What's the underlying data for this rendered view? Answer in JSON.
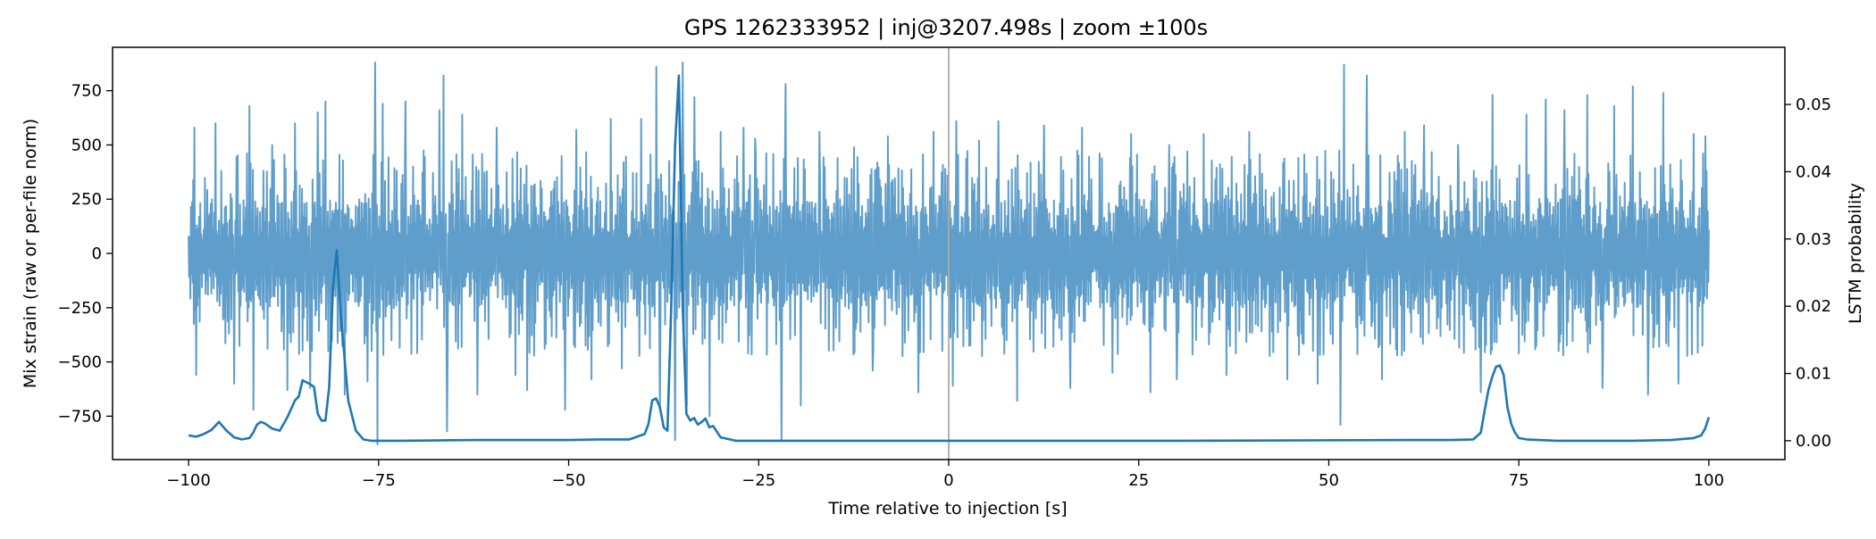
{
  "chart_data": {
    "type": "line",
    "title": "GPS 1262333952 | inj@3207.498s | zoom ±100s",
    "xlabel": "Time relative to injection [s]",
    "ylabel_left": "Mix strain (raw or per-file norm)",
    "ylabel_right": "LSTM probability",
    "xlim": [
      -110,
      110
    ],
    "ylim_left": [
      -950,
      950
    ],
    "ylim_right": [
      -0.0028,
      0.0585
    ],
    "xticks": [
      -100,
      -75,
      -50,
      -25,
      0,
      25,
      50,
      75,
      100
    ],
    "xtick_labels": [
      "−100",
      "−75",
      "−50",
      "−25",
      "0",
      "25",
      "50",
      "75",
      "100"
    ],
    "yticks_left": [
      -750,
      -500,
      -250,
      0,
      250,
      500,
      750
    ],
    "ytick_labels_left": [
      "−750",
      "−500",
      "−250",
      "0",
      "250",
      "500",
      "750"
    ],
    "yticks_right": [
      0.0,
      0.01,
      0.02,
      0.03,
      0.04,
      0.05
    ],
    "ytick_labels_right": [
      "0.00",
      "0.01",
      "0.02",
      "0.03",
      "0.04",
      "0.05"
    ],
    "grid": false,
    "vline_x": 0,
    "colors": {
      "strain": "#5f9ecb",
      "probability": "#1f77b4",
      "vline": "#aaaaaa",
      "axes": "#000000"
    },
    "strain_x_range": [
      -100,
      100
    ],
    "strain_typical_amplitude": 250,
    "strain_peaks": [
      {
        "x": -99.3,
        "y": 580
      },
      {
        "x": -99.0,
        "y": -560
      },
      {
        "x": -96.5,
        "y": 600
      },
      {
        "x": -94.0,
        "y": -600
      },
      {
        "x": -92.0,
        "y": 680
      },
      {
        "x": -91.5,
        "y": -720
      },
      {
        "x": -89.0,
        "y": 500
      },
      {
        "x": -87.0,
        "y": -630
      },
      {
        "x": -86.0,
        "y": 600
      },
      {
        "x": -84.0,
        "y": -620
      },
      {
        "x": -83.0,
        "y": 650
      },
      {
        "x": -82.0,
        "y": 700
      },
      {
        "x": -79.5,
        "y": -650
      },
      {
        "x": -76.5,
        "y": -590
      },
      {
        "x": -75.5,
        "y": 880
      },
      {
        "x": -75.2,
        "y": -880
      },
      {
        "x": -74.5,
        "y": 690
      },
      {
        "x": -71.5,
        "y": 700
      },
      {
        "x": -67.0,
        "y": 660
      },
      {
        "x": -66.5,
        "y": 820
      },
      {
        "x": -66.0,
        "y": -820
      },
      {
        "x": -64.0,
        "y": 640
      },
      {
        "x": -62.0,
        "y": -650
      },
      {
        "x": -59.5,
        "y": 580
      },
      {
        "x": -57.0,
        "y": -560
      },
      {
        "x": -55.5,
        "y": -630
      },
      {
        "x": -50.5,
        "y": -720
      },
      {
        "x": -49.0,
        "y": 570
      },
      {
        "x": -47.0,
        "y": -580
      },
      {
        "x": -44.5,
        "y": 620
      },
      {
        "x": -43.0,
        "y": -530
      },
      {
        "x": -40.5,
        "y": 620
      },
      {
        "x": -38.5,
        "y": 860
      },
      {
        "x": -38.0,
        "y": -720
      },
      {
        "x": -36.0,
        "y": -860
      },
      {
        "x": -35.0,
        "y": 880
      },
      {
        "x": -34.5,
        "y": -700
      },
      {
        "x": -33.5,
        "y": 720
      },
      {
        "x": -31.5,
        "y": -750
      },
      {
        "x": -30.0,
        "y": 560
      },
      {
        "x": -27.0,
        "y": 580
      },
      {
        "x": -25.5,
        "y": 530
      },
      {
        "x": -22.0,
        "y": -860
      },
      {
        "x": -21.5,
        "y": 780
      },
      {
        "x": -19.5,
        "y": -700
      },
      {
        "x": -17.0,
        "y": 560
      },
      {
        "x": -12.5,
        "y": 490
      },
      {
        "x": -10.0,
        "y": -540
      },
      {
        "x": -8.0,
        "y": 540
      },
      {
        "x": -4.0,
        "y": -640
      },
      {
        "x": -2.0,
        "y": 560
      },
      {
        "x": 0.5,
        "y": -610
      },
      {
        "x": 1.0,
        "y": 610
      },
      {
        "x": 4.0,
        "y": 520
      },
      {
        "x": 6.5,
        "y": 610
      },
      {
        "x": 9.0,
        "y": -680
      },
      {
        "x": 12.5,
        "y": 590
      },
      {
        "x": 16.0,
        "y": -620
      },
      {
        "x": 17.5,
        "y": 580
      },
      {
        "x": 21.5,
        "y": -550
      },
      {
        "x": 24.0,
        "y": 550
      },
      {
        "x": 26.5,
        "y": -640
      },
      {
        "x": 29.0,
        "y": 500
      },
      {
        "x": 30.0,
        "y": -580
      },
      {
        "x": 33.5,
        "y": 550
      },
      {
        "x": 36.5,
        "y": -560
      },
      {
        "x": 39.5,
        "y": 560
      },
      {
        "x": 44.5,
        "y": -580
      },
      {
        "x": 46.0,
        "y": 440
      },
      {
        "x": 48.5,
        "y": -600
      },
      {
        "x": 51.5,
        "y": -790
      },
      {
        "x": 52.0,
        "y": 870
      },
      {
        "x": 55.0,
        "y": 820
      },
      {
        "x": 57.0,
        "y": -580
      },
      {
        "x": 60.0,
        "y": 560
      },
      {
        "x": 62.5,
        "y": 590
      },
      {
        "x": 67.0,
        "y": 500
      },
      {
        "x": 70.0,
        "y": -640
      },
      {
        "x": 71.5,
        "y": 730
      },
      {
        "x": 76.0,
        "y": 640
      },
      {
        "x": 78.5,
        "y": 710
      },
      {
        "x": 81.0,
        "y": 660
      },
      {
        "x": 84.0,
        "y": 730
      },
      {
        "x": 86.0,
        "y": -620
      },
      {
        "x": 87.5,
        "y": 680
      },
      {
        "x": 90.0,
        "y": 770
      },
      {
        "x": 92.0,
        "y": -650
      },
      {
        "x": 94.0,
        "y": 740
      },
      {
        "x": 96.0,
        "y": -600
      },
      {
        "x": 98.0,
        "y": 550
      },
      {
        "x": 99.5,
        "y": 540
      }
    ],
    "series": [
      {
        "name": "LSTM probability",
        "axis": "right",
        "x": [
          -100,
          -99,
          -98,
          -97,
          -96.5,
          -96,
          -95,
          -94,
          -93,
          -92,
          -91.5,
          -91,
          -90.5,
          -90,
          -89,
          -88,
          -87,
          -86,
          -85.5,
          -85,
          -84,
          -83.5,
          -83,
          -82.5,
          -82,
          -81.5,
          -81,
          -80.5,
          -80,
          -79,
          -78,
          -77,
          -76,
          -72,
          -62,
          -50,
          -46,
          -42,
          -40,
          -39.5,
          -39,
          -38.5,
          -38,
          -37.5,
          -37,
          -36.5,
          -36,
          -35.5,
          -35,
          -34.5,
          -34,
          -33.5,
          -33,
          -32.5,
          -32,
          -31.5,
          -31,
          -30,
          -28,
          0,
          30,
          60,
          66,
          69,
          70,
          70.5,
          71,
          71.5,
          72,
          72.5,
          73,
          73.5,
          74,
          74.5,
          75,
          76,
          80,
          90,
          95,
          98,
          99,
          99.5,
          100
        ],
        "y": [
          0.0008,
          0.0006,
          0.001,
          0.0016,
          0.0022,
          0.0028,
          0.0015,
          0.0005,
          0.0002,
          0.0004,
          0.0012,
          0.0024,
          0.0028,
          0.0026,
          0.0018,
          0.0015,
          0.0035,
          0.006,
          0.0066,
          0.009,
          0.0084,
          0.008,
          0.004,
          0.003,
          0.003,
          0.008,
          0.023,
          0.0283,
          0.019,
          0.006,
          0.0015,
          0.0002,
          0.0,
          0.0,
          0.0001,
          0.0001,
          0.0002,
          0.0002,
          0.001,
          0.0025,
          0.006,
          0.0063,
          0.005,
          0.002,
          0.0015,
          0.02,
          0.044,
          0.0543,
          0.02,
          0.004,
          0.003,
          0.0034,
          0.0024,
          0.0028,
          0.0033,
          0.002,
          0.0022,
          0.0005,
          0.0,
          0.0,
          0.0,
          0.0001,
          0.0001,
          0.0002,
          0.0012,
          0.0045,
          0.0075,
          0.0095,
          0.011,
          0.0112,
          0.0098,
          0.005,
          0.0025,
          0.0012,
          0.0004,
          0.0002,
          0.0,
          0.0,
          0.0001,
          0.0004,
          0.0008,
          0.0018,
          0.0035
        ]
      }
    ]
  }
}
